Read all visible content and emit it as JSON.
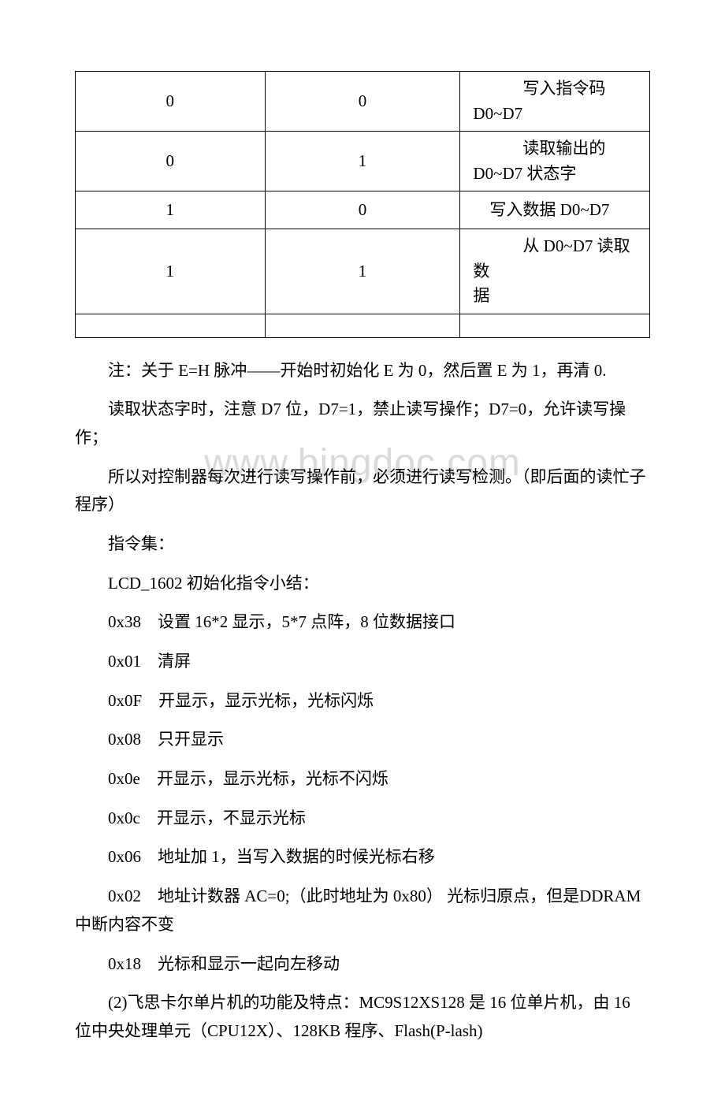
{
  "watermark": "www.bingdoc.com",
  "table": {
    "rows": [
      {
        "a": "0",
        "b": "0",
        "c": "　　　写入指令码\nD0~D7",
        "cClass": "col-c"
      },
      {
        "a": "0",
        "b": "1",
        "c": "　　　读取输出的\nD0~D7 状态字",
        "cClass": "col-c"
      },
      {
        "a": "1",
        "b": "0",
        "c": "　写入数据 D0~D7",
        "cClass": "col-c"
      },
      {
        "a": "1",
        "b": "1",
        "c": "　　　从 D0~D7 读取数\n据",
        "cClass": "col-c"
      },
      {
        "a": "",
        "b": "",
        "c": "",
        "cClass": "col-c"
      }
    ]
  },
  "paragraphs": {
    "p1": "注：关于 E=H 脉冲——开始时初始化 E 为 0，然后置 E 为 1，再清 0.",
    "p2": "读取状态字时，注意 D7 位，D7=1，禁止读写操作；D7=0，允许读写操作；",
    "p3": "所以对控制器每次进行读写操作前，必须进行读写检测。（即后面的读忙子程序）",
    "p4": "指令集：",
    "p5": "LCD_1602 初始化指令小结：",
    "p6": "0x38　设置 16*2 显示，5*7 点阵，8 位数据接口",
    "p7": "0x01　清屏",
    "p8": "0x0F　开显示，显示光标，光标闪烁",
    "p9": "0x08　只开显示",
    "p10": "0x0e　开显示，显示光标，光标不闪烁",
    "p11": "0x0c　开显示，不显示光标",
    "p12": "0x06　地址加 1，当写入数据的时候光标右移",
    "p13": "0x02　地址计数器 AC=0;（此时地址为 0x80） 光标归原点，但是DDRAM 中断内容不变",
    "p14": "0x18　光标和显示一起向左移动",
    "p15": "(2)飞思卡尔单片机的功能及特点：MC9S12XS128 是 16 位单片机，由 16 位中央处理单元（CPU12X）、128KB 程序、Flash(P-lash)"
  }
}
